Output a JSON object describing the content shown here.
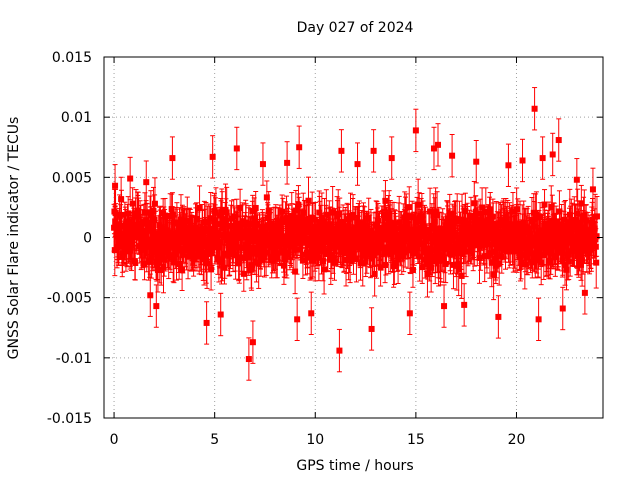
{
  "chart_data": {
    "type": "scatter",
    "title": "Day 027 of 2024",
    "xlabel": "GPS time / hours",
    "ylabel": "GNSS Solar Flare indicator / TECUs",
    "xlim": [
      -0.5,
      24.3
    ],
    "ylim": [
      -0.015,
      0.015
    ],
    "xticks": [
      0,
      5,
      10,
      15,
      20
    ],
    "xtick_labels": [
      "0",
      "5",
      "10",
      "15",
      "20"
    ],
    "yticks": [
      -0.015,
      -0.01,
      -0.005,
      0,
      0.005,
      0.01,
      0.015
    ],
    "ytick_labels": [
      "-0.015",
      "-0.01",
      "-0.005",
      "0",
      "0.005",
      "0.01",
      "0.015"
    ],
    "grid": true,
    "series": [
      {
        "color": "#ff0000",
        "marker": "square",
        "error_bars": true,
        "typical_error": 0.0016,
        "x_range": [
          0,
          24
        ],
        "typical_spread": 0.0025,
        "outliers": [
          {
            "x": 0.05,
            "y": 0.0043
          },
          {
            "x": 0.8,
            "y": 0.0049
          },
          {
            "x": 1.6,
            "y": 0.0046
          },
          {
            "x": 1.8,
            "y": -0.0048
          },
          {
            "x": 2.1,
            "y": -0.0057
          },
          {
            "x": 2.9,
            "y": 0.0066
          },
          {
            "x": 4.6,
            "y": -0.0071
          },
          {
            "x": 4.9,
            "y": 0.0067
          },
          {
            "x": 5.3,
            "y": -0.0064
          },
          {
            "x": 6.1,
            "y": 0.0074
          },
          {
            "x": 6.7,
            "y": -0.0101
          },
          {
            "x": 6.9,
            "y": -0.0087
          },
          {
            "x": 7.4,
            "y": 0.0061
          },
          {
            "x": 8.6,
            "y": 0.0062
          },
          {
            "x": 9.2,
            "y": 0.0075
          },
          {
            "x": 9.1,
            "y": -0.0068
          },
          {
            "x": 9.8,
            "y": -0.0063
          },
          {
            "x": 11.2,
            "y": -0.0094
          },
          {
            "x": 11.3,
            "y": 0.0072
          },
          {
            "x": 12.1,
            "y": 0.0061
          },
          {
            "x": 12.8,
            "y": -0.0076
          },
          {
            "x": 12.9,
            "y": 0.0072
          },
          {
            "x": 13.8,
            "y": 0.0066
          },
          {
            "x": 14.7,
            "y": -0.0063
          },
          {
            "x": 15.0,
            "y": 0.0089
          },
          {
            "x": 15.9,
            "y": 0.0074
          },
          {
            "x": 16.1,
            "y": 0.0077
          },
          {
            "x": 16.4,
            "y": -0.0057
          },
          {
            "x": 16.8,
            "y": 0.0068
          },
          {
            "x": 17.4,
            "y": -0.0056
          },
          {
            "x": 18.0,
            "y": 0.0063
          },
          {
            "x": 19.1,
            "y": -0.0066
          },
          {
            "x": 19.6,
            "y": 0.006
          },
          {
            "x": 20.3,
            "y": 0.0064
          },
          {
            "x": 20.9,
            "y": 0.0107
          },
          {
            "x": 21.1,
            "y": -0.0068
          },
          {
            "x": 21.3,
            "y": 0.0066
          },
          {
            "x": 21.8,
            "y": 0.0069
          },
          {
            "x": 22.1,
            "y": 0.0081
          },
          {
            "x": 22.3,
            "y": -0.0059
          },
          {
            "x": 23.0,
            "y": 0.0048
          },
          {
            "x": 23.4,
            "y": -0.0046
          },
          {
            "x": 23.8,
            "y": 0.004
          }
        ]
      }
    ]
  }
}
